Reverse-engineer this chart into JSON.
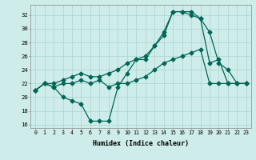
{
  "xlabel": "Humidex (Indice chaleur)",
  "bg_color": "#ceecea",
  "line_color": "#006655",
  "grid_color": "#aad4d0",
  "xlim": [
    -0.5,
    23.5
  ],
  "ylim": [
    15.5,
    33.5
  ],
  "yticks": [
    16,
    18,
    20,
    22,
    24,
    26,
    28,
    30,
    32
  ],
  "xticks": [
    0,
    1,
    2,
    3,
    4,
    5,
    6,
    7,
    8,
    9,
    10,
    11,
    12,
    13,
    14,
    15,
    16,
    17,
    18,
    19,
    20,
    21,
    22,
    23
  ],
  "line1_x": [
    0,
    1,
    2,
    3,
    4,
    5,
    6,
    7,
    8,
    9,
    10,
    11,
    12,
    13,
    14,
    15,
    16,
    17,
    18,
    19,
    20,
    21,
    22,
    23
  ],
  "line1_y": [
    21.0,
    22.0,
    21.5,
    22.0,
    22.0,
    22.5,
    22.0,
    22.5,
    21.5,
    22.0,
    22.0,
    22.5,
    23.0,
    24.0,
    25.0,
    25.5,
    26.0,
    26.5,
    27.0,
    22.0,
    22.0,
    22.0,
    22.0,
    22.0
  ],
  "line2_x": [
    0,
    1,
    2,
    3,
    4,
    5,
    6,
    7,
    8,
    9,
    10,
    11,
    12,
    13,
    14,
    15,
    16,
    17,
    18,
    19,
    20,
    21,
    22,
    23
  ],
  "line2_y": [
    21.0,
    22.0,
    21.5,
    20.0,
    19.5,
    19.0,
    16.5,
    16.5,
    16.5,
    21.5,
    23.5,
    25.5,
    25.5,
    27.5,
    29.0,
    32.5,
    32.5,
    32.0,
    31.5,
    29.5,
    25.0,
    24.0,
    22.0,
    22.0
  ],
  "line3_x": [
    0,
    1,
    2,
    3,
    4,
    5,
    6,
    7,
    8,
    9,
    10,
    11,
    12,
    13,
    14,
    15,
    16,
    17,
    18,
    19,
    20,
    21,
    22,
    23
  ],
  "line3_y": [
    21.0,
    22.0,
    22.0,
    22.5,
    23.0,
    23.5,
    23.0,
    23.0,
    23.5,
    24.0,
    25.0,
    25.5,
    26.0,
    27.5,
    29.5,
    32.5,
    32.5,
    32.5,
    31.5,
    25.0,
    25.5,
    22.0,
    22.0,
    22.0
  ]
}
